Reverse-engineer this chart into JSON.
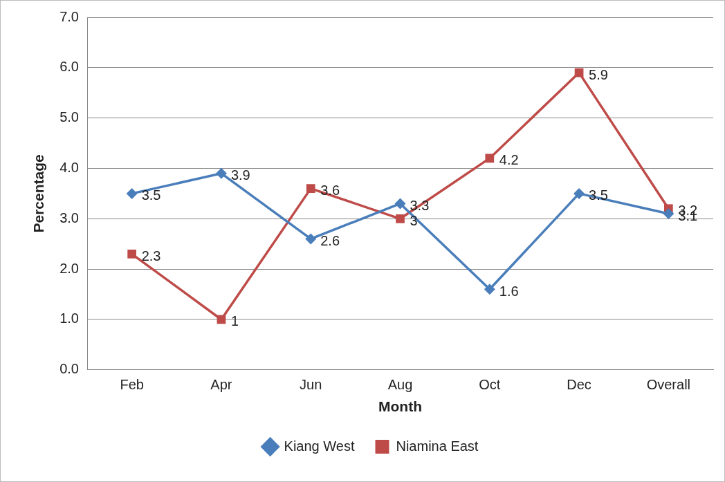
{
  "chart_data": {
    "type": "line",
    "xlabel": "Month",
    "ylabel": "Percentage",
    "categories": [
      "Feb",
      "Apr",
      "Jun",
      "Aug",
      "Oct",
      "Dec",
      "Overall"
    ],
    "series": [
      {
        "name": "Kiang West",
        "color": "#4a7ebb",
        "marker": "diamond",
        "values": [
          3.5,
          3.9,
          2.6,
          3.3,
          1.6,
          3.5,
          3.1
        ]
      },
      {
        "name": "Niamina East",
        "color": "#be4b48",
        "marker": "square",
        "values": [
          2.3,
          1,
          3.6,
          3,
          4.2,
          5.9,
          3.2
        ]
      }
    ],
    "ylim": [
      0,
      7
    ],
    "yticks": [
      {
        "value": 0,
        "label": "0.0"
      },
      {
        "value": 1,
        "label": "1.0"
      },
      {
        "value": 2,
        "label": "2.0"
      },
      {
        "value": 3,
        "label": "3.0"
      },
      {
        "value": 4,
        "label": "4.0"
      },
      {
        "value": 5,
        "label": "5.0"
      },
      {
        "value": 6,
        "label": "6.0"
      },
      {
        "value": 7,
        "label": "7.0"
      }
    ],
    "grid": "y",
    "legend": "bottom",
    "data_labels": true,
    "line_style": "solid"
  }
}
